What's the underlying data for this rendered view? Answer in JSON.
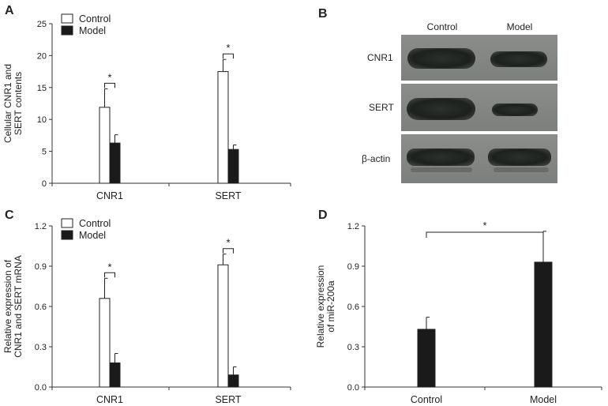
{
  "panels": {
    "A": "A",
    "B": "B",
    "C": "C",
    "D": "D"
  },
  "chart_data": [
    {
      "panel": "A",
      "type": "bar",
      "ylabel_lines": [
        "Cellular CNR1 and",
        "SERT contents"
      ],
      "xlabel": "",
      "categories": [
        "CNR1",
        "SERT"
      ],
      "ylim": [
        0,
        25
      ],
      "yticks": [
        "0",
        "5",
        "10",
        "15",
        "20",
        "25"
      ],
      "series": [
        {
          "name": "Control",
          "color": "#ffffff",
          "values": [
            11.9,
            17.5
          ],
          "errors": [
            2.9,
            1.9
          ]
        },
        {
          "name": "Model",
          "color": "#1a1a1a",
          "values": [
            6.3,
            5.3
          ],
          "errors": [
            1.3,
            0.7
          ]
        }
      ],
      "significance": [
        "*",
        "*"
      ],
      "legend": "top-left"
    },
    {
      "panel": "C",
      "type": "bar",
      "ylabel_lines": [
        "Relative expression of",
        "CNR1 and SERT mRNA"
      ],
      "xlabel": "",
      "categories": [
        "CNR1",
        "SERT"
      ],
      "ylim": [
        0,
        1.2
      ],
      "yticks": [
        "0.0",
        "0.3",
        "0.6",
        "0.9",
        "1.2"
      ],
      "series": [
        {
          "name": "Control",
          "color": "#ffffff",
          "values": [
            0.66,
            0.91
          ],
          "errors": [
            0.15,
            0.08
          ]
        },
        {
          "name": "Model",
          "color": "#1a1a1a",
          "values": [
            0.18,
            0.09
          ],
          "errors": [
            0.07,
            0.06
          ]
        }
      ],
      "significance": [
        "*",
        "*"
      ],
      "legend": "top-left"
    },
    {
      "panel": "D",
      "type": "bar",
      "ylabel_lines": [
        "Relative expression",
        "of miR-200a"
      ],
      "xlabel": "",
      "categories": [
        "Control",
        "Model"
      ],
      "ylim": [
        0,
        1.2
      ],
      "yticks": [
        "0.0",
        "0.3",
        "0.6",
        "0.9",
        "1.2"
      ],
      "values": [
        0.43,
        0.93
      ],
      "errors": [
        0.09,
        0.23
      ],
      "color": "#1a1a1a",
      "significance": [
        "*"
      ]
    }
  ],
  "blot": {
    "columns": [
      "Control",
      "Model"
    ],
    "rows": [
      "CNR1",
      "SERT",
      "β-actin"
    ]
  }
}
